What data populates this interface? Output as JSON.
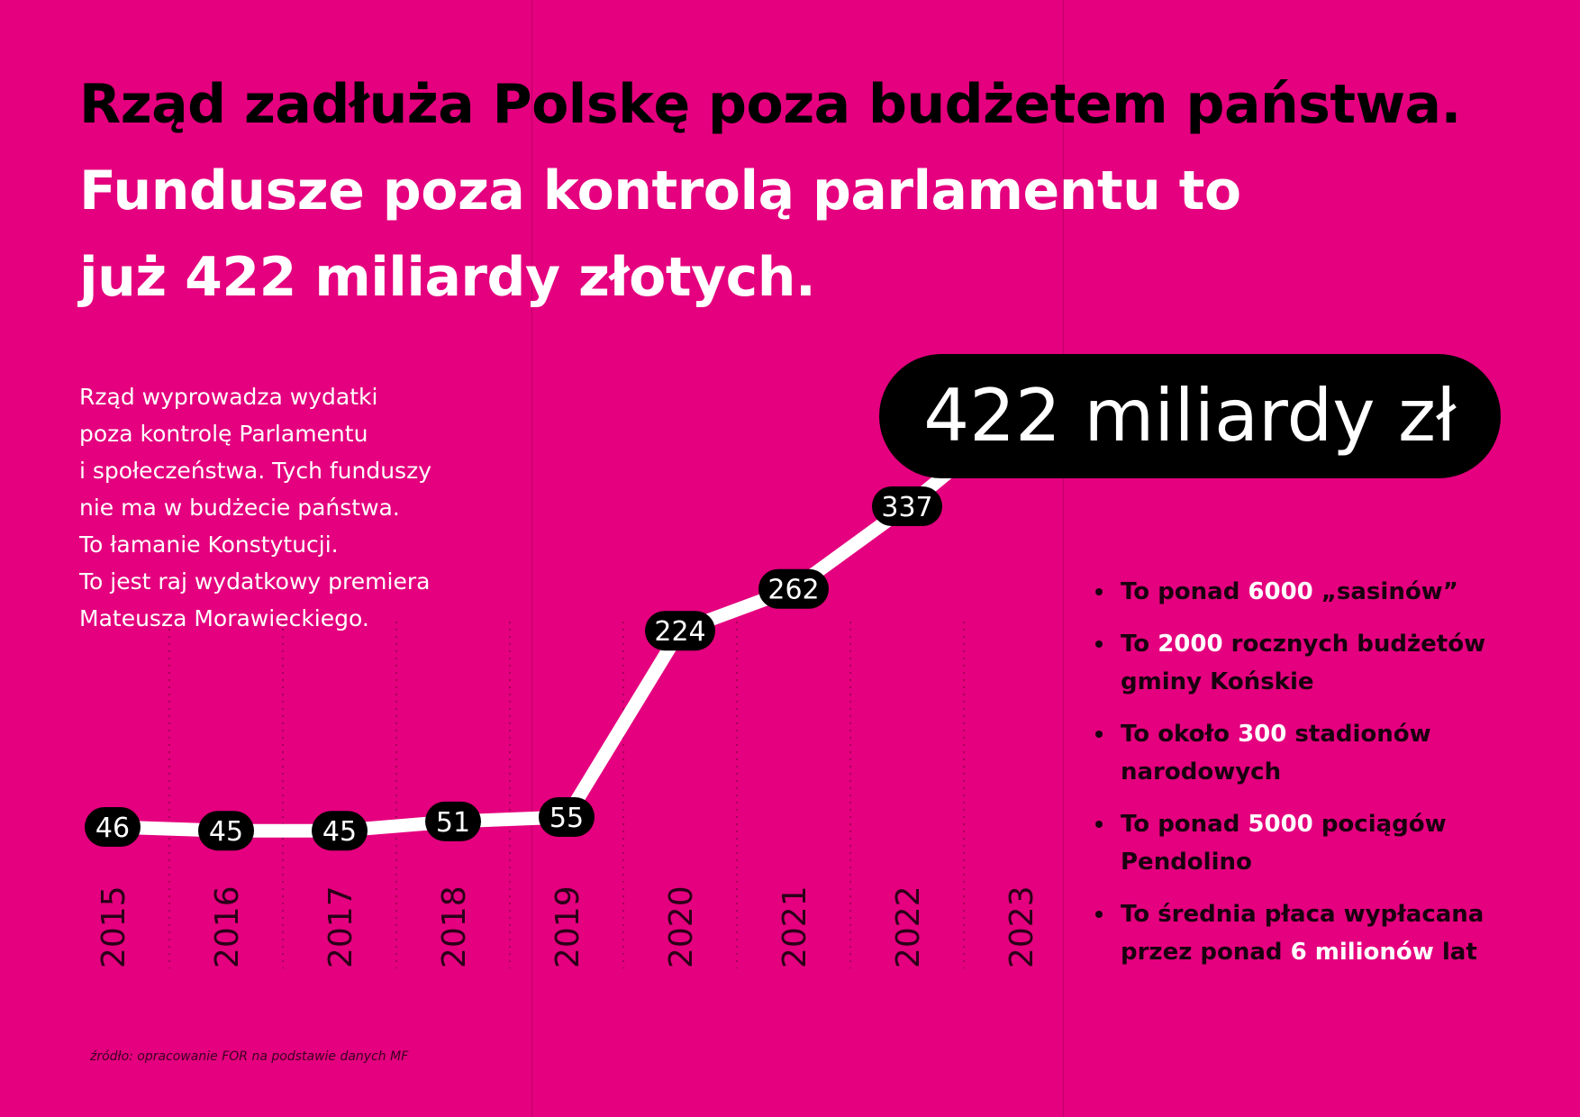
{
  "title": {
    "line1": "Rząd zadłuża Polskę poza budżetem państwa.",
    "line2": "Fundusze poza kontrolą parlamentu to",
    "line3": "już 422 miliardy złotych."
  },
  "intro_lines": [
    "Rząd wyprowadza wydatki",
    "poza kontrolę Parlamentu",
    "i społeczeństwa. Tych funduszy",
    "nie ma w budżecie państwa.",
    "To łamanie Konstytucji.",
    "To jest raj wydatkowy premiera",
    "Mateusza Morawieckiego."
  ],
  "callout": "422 miliardy zł",
  "facts": [
    {
      "pre": "To ponad ",
      "hl": "6000",
      "post": " „sasinów”"
    },
    {
      "pre": "To ",
      "hl": "2000",
      "post": " rocznych budżetów gminy Końskie"
    },
    {
      "pre": "To około ",
      "hl": "300",
      "post": " stadionów narodowych"
    },
    {
      "pre": "To ponad ",
      "hl": "5000",
      "post": " pociągów Pendolino"
    },
    {
      "pre": "To średnia płaca wypłacana przez ponad ",
      "hl": "6 milionów",
      "post": " lat"
    }
  ],
  "source": "źródło: opracowanie FOR na podstawie danych MF",
  "colors": {
    "background": "#e4007e",
    "line": "#ffffff",
    "label_pill": "#000000",
    "label_text": "#ffffff"
  },
  "chart_data": {
    "type": "line",
    "categories": [
      "2015",
      "2016",
      "2017",
      "2018",
      "2019",
      "2020",
      "2021",
      "2022",
      "2023"
    ],
    "values": [
      46,
      45,
      45,
      51,
      55,
      224,
      262,
      337,
      422
    ],
    "value_labels": [
      "46",
      "45",
      "45",
      "51",
      "55",
      "224",
      "262",
      "337",
      "422 miliardy zł"
    ],
    "ylim": [
      0,
      422
    ],
    "grid": "dotted vertical",
    "xlabel": "",
    "ylabel": ""
  }
}
